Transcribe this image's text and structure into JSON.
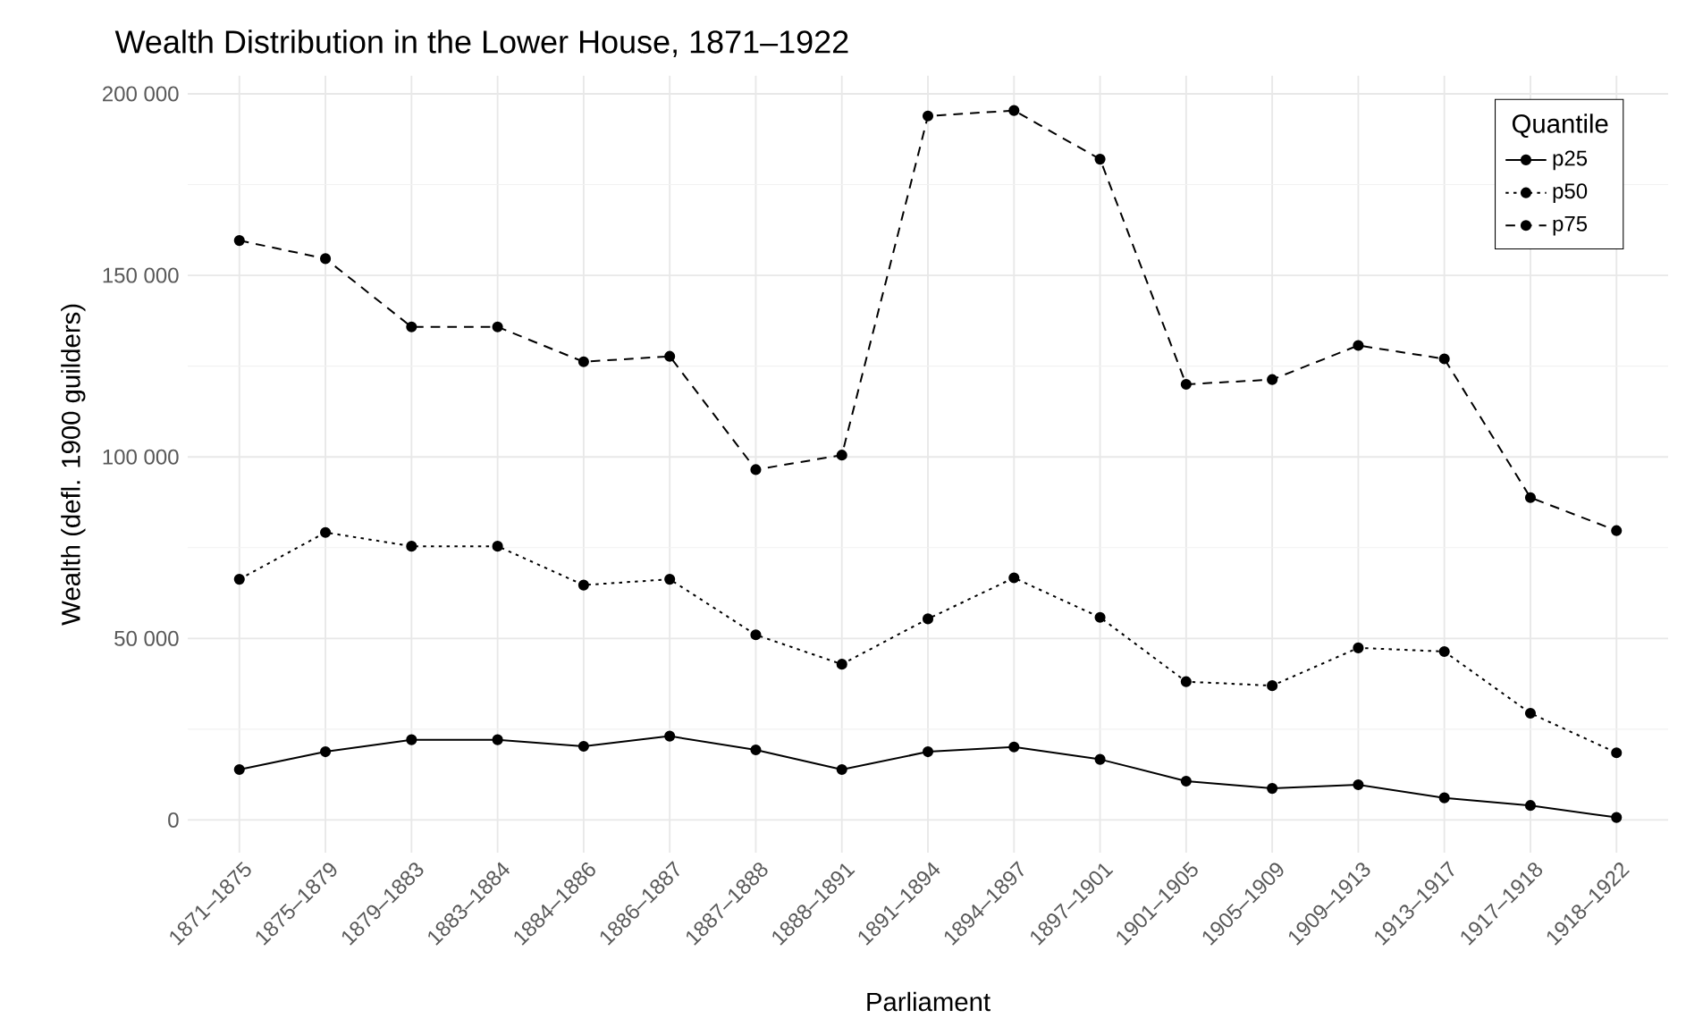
{
  "chart_data": {
    "type": "line",
    "title": "Wealth Distribution in the Lower House, 1871–1922",
    "xlabel": "Parliament",
    "ylabel": "Wealth (defl. 1900 guilders)",
    "legend_title": "Quantile",
    "categories": [
      "1871–1875",
      "1875–1879",
      "1879–1883",
      "1883–1884",
      "1884–1886",
      "1886–1887",
      "1887–1888",
      "1888–1891",
      "1891–1894",
      "1894–1897",
      "1897–1901",
      "1901–1905",
      "1905–1909",
      "1909–1913",
      "1913–1917",
      "1917–1918",
      "1918–1922"
    ],
    "series": [
      {
        "name": "p25",
        "color": "#000000",
        "line_style": "solid",
        "values": [
          13900,
          18800,
          22100,
          22100,
          20300,
          23100,
          19300,
          13900,
          18800,
          20100,
          16700,
          10700,
          8700,
          9700,
          6100,
          4000,
          700
        ]
      },
      {
        "name": "p50",
        "color": "#000000",
        "line_style": "dotted",
        "values": [
          66300,
          79200,
          75400,
          75400,
          64700,
          66300,
          51000,
          42900,
          55400,
          66700,
          55800,
          38100,
          37000,
          47400,
          46400,
          29400,
          18500
        ]
      },
      {
        "name": "p75",
        "color": "#000000",
        "line_style": "dashed",
        "values": [
          159600,
          154600,
          135800,
          135800,
          126200,
          127700,
          96500,
          100500,
          193900,
          195400,
          182000,
          120000,
          121300,
          130700,
          127000,
          88800,
          79700
        ]
      }
    ],
    "ylim": [
      -9000,
      205000
    ],
    "yticks": [
      {
        "value": 0,
        "label": "0"
      },
      {
        "value": 50000,
        "label": "50 000"
      },
      {
        "value": 100000,
        "label": "100 000"
      },
      {
        "value": 150000,
        "label": "150 000"
      },
      {
        "value": 200000,
        "label": "200 000"
      }
    ],
    "grid": true,
    "legend": "top right",
    "marker": "circle"
  }
}
